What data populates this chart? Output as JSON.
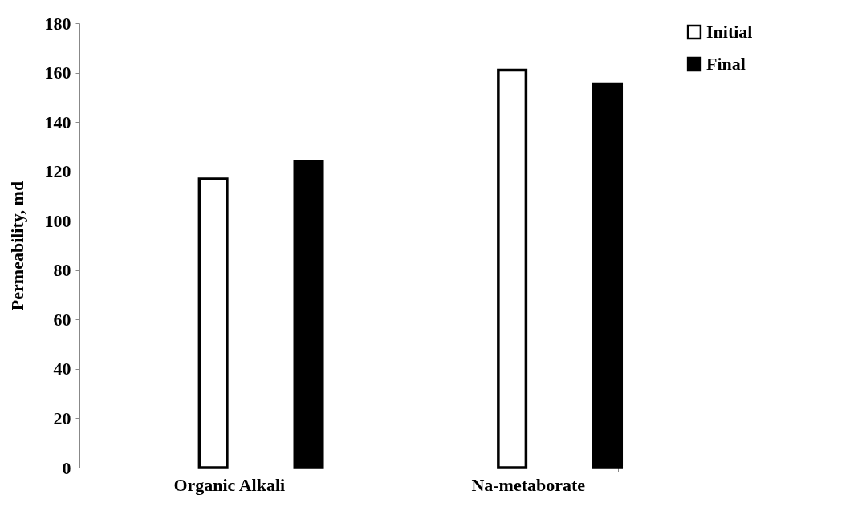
{
  "chart_data": {
    "type": "bar",
    "ylabel": "Permeability, md",
    "categories": [
      "Organic Alkali",
      "Na-metaborate"
    ],
    "series": [
      {
        "name": "Initial",
        "color": "#ffffff",
        "values": [
          117,
          161
        ]
      },
      {
        "name": "Final",
        "color": "#000000",
        "values": [
          124,
          155.5
        ]
      }
    ],
    "ylim": [
      0,
      180
    ],
    "yticks": [
      0,
      20,
      40,
      60,
      80,
      100,
      120,
      140,
      160,
      180
    ],
    "grid": false,
    "legend": "right"
  }
}
